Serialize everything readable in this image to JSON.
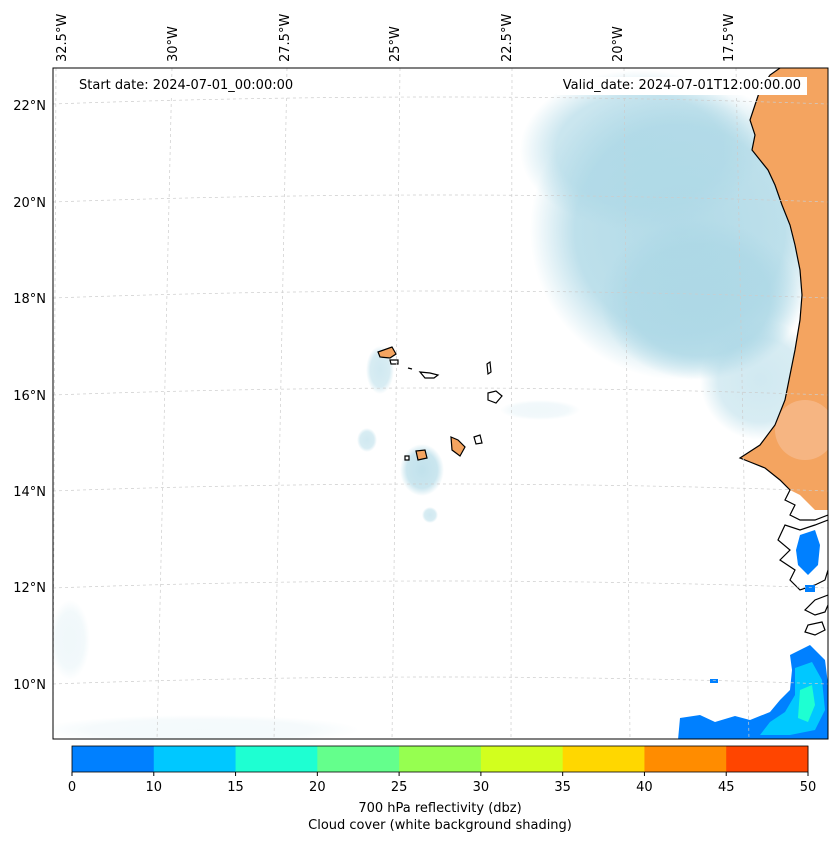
{
  "map": {
    "start_date": "Start date: 2024-07-01_00:00:00",
    "valid_date": "Valid_date: 2024-07-01T12:00:00.00",
    "lon_labels": [
      "32.5°W",
      "30°W",
      "27.5°W",
      "25°W",
      "22.5°W",
      "20°W",
      "17.5°W"
    ],
    "lat_labels": [
      "22°N",
      "20°N",
      "18°N",
      "16°N",
      "14°N",
      "12°N",
      "10°N"
    ],
    "colors": {
      "land": "#f4a460",
      "cloud": "#add8e6",
      "grid": "#cccccc",
      "ocean": "#ffffff"
    }
  },
  "colorbar": {
    "ticks": [
      "0",
      "10",
      "15",
      "20",
      "25",
      "30",
      "35",
      "40",
      "45",
      "50"
    ],
    "colors": [
      "#0080ff",
      "#00c8ff",
      "#1effd2",
      "#64ff8c",
      "#96ff50",
      "#d2ff1e",
      "#ffd700",
      "#ff8c00",
      "#ff4500"
    ],
    "label": "700 hPa reflectivity (dbz)",
    "sublabel": "Cloud cover (white background shading)"
  }
}
